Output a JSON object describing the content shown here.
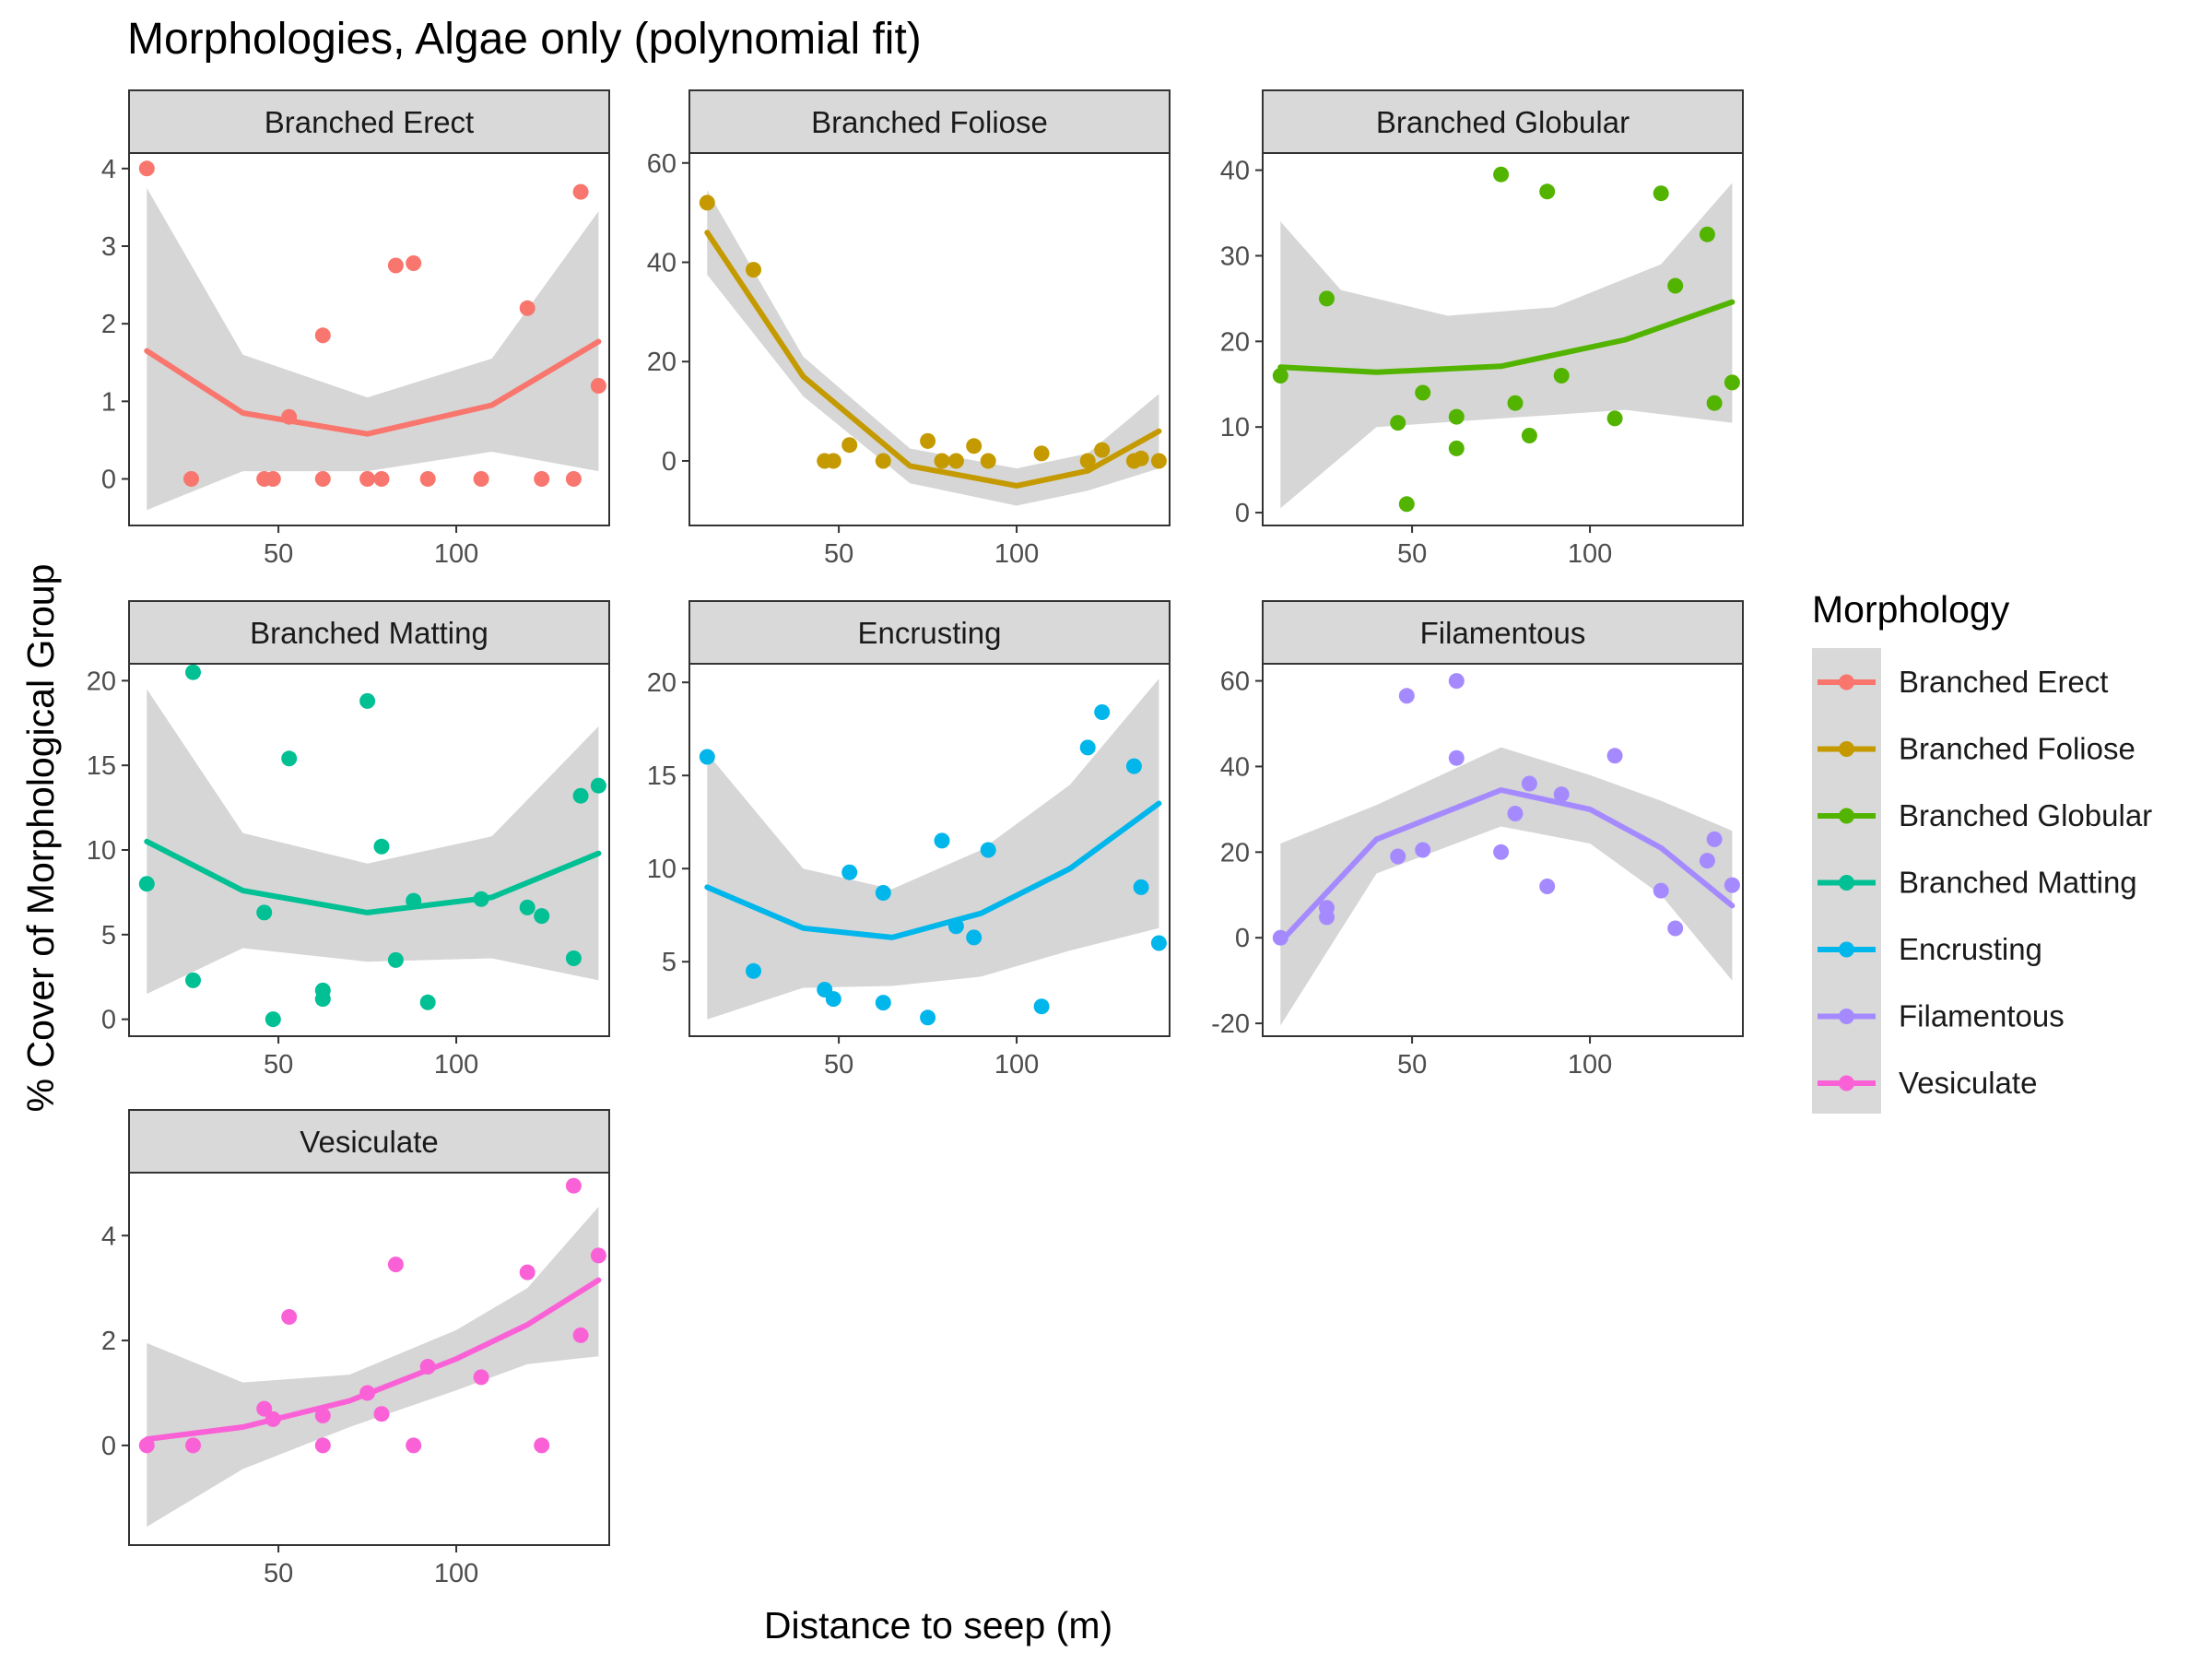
{
  "title": "Morphologies, Algae only (polynomial fit)",
  "xlabel": "Distance to seep (m)",
  "ylabel": "% Cover of Morphological Group",
  "legend": {
    "title": "Morphology",
    "position": "right"
  },
  "chart_data": {
    "type": "scatter",
    "facet_layout": "3 columns, 3 rows",
    "fit": "polynomial (degree 2) with confidence band",
    "x_range": [
      8,
      143
    ],
    "x_ticks": [
      50,
      100
    ],
    "panels": [
      {
        "name": "Branched Erect",
        "color": "#F8766D",
        "ylim": [
          -0.6,
          4.2
        ],
        "y_ticks": [
          0,
          1,
          2,
          3,
          4
        ],
        "points": [
          [
            13,
            4.0
          ],
          [
            25.5,
            0
          ],
          [
            46,
            0
          ],
          [
            48.5,
            0
          ],
          [
            53,
            0.8
          ],
          [
            62.5,
            1.85
          ],
          [
            62.5,
            0
          ],
          [
            75,
            0
          ],
          [
            79,
            0
          ],
          [
            83,
            2.75
          ],
          [
            88,
            2.78
          ],
          [
            92,
            0
          ],
          [
            107,
            0
          ],
          [
            120,
            2.2
          ],
          [
            124,
            0
          ],
          [
            133,
            0
          ],
          [
            135,
            3.7
          ],
          [
            140,
            1.2
          ]
        ],
        "fit": [
          [
            13,
            1.65
          ],
          [
            40,
            0.85
          ],
          [
            75,
            0.58
          ],
          [
            110,
            0.95
          ],
          [
            140,
            1.77
          ]
        ],
        "band_upper": [
          [
            13,
            3.75
          ],
          [
            40,
            1.6
          ],
          [
            75,
            1.05
          ],
          [
            110,
            1.55
          ],
          [
            140,
            3.45
          ]
        ],
        "band_lower": [
          [
            13,
            -0.4
          ],
          [
            40,
            0.1
          ],
          [
            75,
            0.1
          ],
          [
            110,
            0.35
          ],
          [
            140,
            0.1
          ]
        ]
      },
      {
        "name": "Branched Foliose",
        "color": "#C49A00",
        "ylim": [
          -13,
          62
        ],
        "y_ticks": [
          0,
          20,
          40,
          60
        ],
        "points": [
          [
            13,
            52
          ],
          [
            26,
            38.5
          ],
          [
            46,
            0
          ],
          [
            48.5,
            0
          ],
          [
            53,
            3.2
          ],
          [
            62.5,
            0
          ],
          [
            75,
            4
          ],
          [
            79,
            0
          ],
          [
            83,
            0
          ],
          [
            88,
            3
          ],
          [
            92,
            0
          ],
          [
            107,
            1.5
          ],
          [
            120,
            0
          ],
          [
            124,
            2.2
          ],
          [
            133,
            0
          ],
          [
            135,
            0.5
          ],
          [
            140,
            0
          ]
        ],
        "fit": [
          [
            13,
            46
          ],
          [
            40,
            17
          ],
          [
            70,
            -1
          ],
          [
            100,
            -5
          ],
          [
            120,
            -2
          ],
          [
            140,
            6
          ]
        ],
        "band_upper": [
          [
            13,
            54.5
          ],
          [
            40,
            21
          ],
          [
            70,
            2.5
          ],
          [
            100,
            -1.5
          ],
          [
            120,
            1.5
          ],
          [
            140,
            13.5
          ]
        ],
        "band_lower": [
          [
            13,
            37.5
          ],
          [
            40,
            13
          ],
          [
            70,
            -4.5
          ],
          [
            100,
            -9
          ],
          [
            120,
            -6
          ],
          [
            140,
            -1.5
          ]
        ]
      },
      {
        "name": "Branched Globular",
        "color": "#53B400",
        "ylim": [
          -1.5,
          42
        ],
        "y_ticks": [
          0,
          10,
          20,
          30,
          40
        ],
        "points": [
          [
            13,
            16
          ],
          [
            26,
            25
          ],
          [
            46,
            10.5
          ],
          [
            48.5,
            1
          ],
          [
            53,
            14
          ],
          [
            62.5,
            11.2
          ],
          [
            62.5,
            7.5
          ],
          [
            75,
            39.5
          ],
          [
            79,
            12.8
          ],
          [
            83,
            9
          ],
          [
            88,
            37.5
          ],
          [
            92,
            16
          ],
          [
            107,
            11
          ],
          [
            120,
            37.3
          ],
          [
            124,
            26.5
          ],
          [
            133,
            32.5
          ],
          [
            135,
            12.8
          ],
          [
            140,
            15.2
          ]
        ],
        "fit": [
          [
            13,
            17
          ],
          [
            40,
            16.4
          ],
          [
            75,
            17.1
          ],
          [
            110,
            20.2
          ],
          [
            140,
            24.6
          ]
        ],
        "band_upper": [
          [
            13,
            34
          ],
          [
            30,
            26
          ],
          [
            60,
            23
          ],
          [
            90,
            24
          ],
          [
            120,
            29
          ],
          [
            140,
            38.5
          ]
        ],
        "band_lower": [
          [
            13,
            0.5
          ],
          [
            40,
            10
          ],
          [
            75,
            11
          ],
          [
            110,
            12
          ],
          [
            140,
            10.5
          ]
        ]
      },
      {
        "name": "Branched Matting",
        "color": "#00C094",
        "ylim": [
          -1,
          21
        ],
        "y_ticks": [
          0,
          5,
          10,
          15,
          20
        ],
        "points": [
          [
            13,
            8
          ],
          [
            26,
            2.3
          ],
          [
            26,
            20.5
          ],
          [
            46,
            6.3
          ],
          [
            48.5,
            0
          ],
          [
            53,
            15.4
          ],
          [
            62.5,
            1.7
          ],
          [
            62.5,
            1.2
          ],
          [
            75,
            18.8
          ],
          [
            79,
            10.2
          ],
          [
            83,
            3.5
          ],
          [
            88,
            7
          ],
          [
            92,
            1
          ],
          [
            107,
            7.1
          ],
          [
            120,
            6.6
          ],
          [
            124,
            6.1
          ],
          [
            133,
            3.6
          ],
          [
            135,
            13.2
          ],
          [
            140,
            13.8
          ]
        ],
        "fit": [
          [
            13,
            10.5
          ],
          [
            40,
            7.6
          ],
          [
            75,
            6.3
          ],
          [
            110,
            7.2
          ],
          [
            140,
            9.8
          ]
        ],
        "band_upper": [
          [
            13,
            19.5
          ],
          [
            40,
            11
          ],
          [
            75,
            9.2
          ],
          [
            110,
            10.8
          ],
          [
            140,
            17.3
          ]
        ],
        "band_lower": [
          [
            13,
            1.5
          ],
          [
            40,
            4.2
          ],
          [
            75,
            3.4
          ],
          [
            110,
            3.6
          ],
          [
            140,
            2.3
          ]
        ]
      },
      {
        "name": "Encrusting",
        "color": "#00B6EB",
        "ylim": [
          1,
          21
        ],
        "y_ticks": [
          5,
          10,
          15,
          20
        ],
        "points": [
          [
            13,
            16
          ],
          [
            26,
            4.5
          ],
          [
            46,
            3.5
          ],
          [
            48.5,
            3
          ],
          [
            53,
            9.8
          ],
          [
            62.5,
            8.7
          ],
          [
            62.5,
            2.8
          ],
          [
            75,
            2
          ],
          [
            79,
            11.5
          ],
          [
            83,
            6.9
          ],
          [
            88,
            6.3
          ],
          [
            92,
            11
          ],
          [
            107,
            2.6
          ],
          [
            120,
            16.5
          ],
          [
            124,
            18.4
          ],
          [
            133,
            15.5
          ],
          [
            135,
            9
          ],
          [
            140,
            6
          ]
        ],
        "fit": [
          [
            13,
            9
          ],
          [
            40,
            6.8
          ],
          [
            65,
            6.3
          ],
          [
            90,
            7.6
          ],
          [
            115,
            10
          ],
          [
            140,
            13.5
          ]
        ],
        "band_upper": [
          [
            13,
            16.2
          ],
          [
            40,
            10
          ],
          [
            65,
            8.9
          ],
          [
            90,
            11
          ],
          [
            115,
            14.5
          ],
          [
            140,
            20.2
          ]
        ],
        "band_lower": [
          [
            13,
            1.9
          ],
          [
            40,
            3.6
          ],
          [
            65,
            3.7
          ],
          [
            90,
            4.2
          ],
          [
            115,
            5.6
          ],
          [
            140,
            6.8
          ]
        ]
      },
      {
        "name": "Filamentous",
        "color": "#A58AFF",
        "ylim": [
          -23,
          64
        ],
        "y_ticks": [
          -20,
          0,
          20,
          40,
          60
        ],
        "points": [
          [
            13,
            0
          ],
          [
            26,
            7
          ],
          [
            26,
            4.8
          ],
          [
            46,
            19
          ],
          [
            48.5,
            56.5
          ],
          [
            53,
            20.5
          ],
          [
            62.5,
            60
          ],
          [
            62.5,
            42
          ],
          [
            75,
            20
          ],
          [
            79,
            29
          ],
          [
            83,
            36
          ],
          [
            88,
            12
          ],
          [
            92,
            33.5
          ],
          [
            107,
            42.5
          ],
          [
            120,
            11
          ],
          [
            124,
            2.2
          ],
          [
            133,
            18
          ],
          [
            135,
            23
          ],
          [
            140,
            12.3
          ]
        ],
        "fit": [
          [
            13,
            -1
          ],
          [
            40,
            23
          ],
          [
            75,
            34.5
          ],
          [
            100,
            30
          ],
          [
            120,
            21
          ],
          [
            140,
            7.5
          ]
        ],
        "band_upper": [
          [
            13,
            22
          ],
          [
            40,
            31
          ],
          [
            75,
            44.5
          ],
          [
            100,
            38
          ],
          [
            120,
            32
          ],
          [
            140,
            25
          ]
        ],
        "band_lower": [
          [
            13,
            -20.5
          ],
          [
            40,
            15
          ],
          [
            75,
            26
          ],
          [
            100,
            22
          ],
          [
            120,
            10
          ],
          [
            140,
            -10
          ]
        ]
      },
      {
        "name": "Vesiculate",
        "color": "#FB61D7",
        "ylim": [
          -1.9,
          5.2
        ],
        "y_ticks": [
          0,
          2,
          4
        ],
        "points": [
          [
            13,
            0
          ],
          [
            26,
            0
          ],
          [
            46,
            0.7
          ],
          [
            48.5,
            0.5
          ],
          [
            53,
            2.45
          ],
          [
            62.5,
            0.57
          ],
          [
            62.5,
            0
          ],
          [
            75,
            1
          ],
          [
            79,
            0.6
          ],
          [
            83,
            3.45
          ],
          [
            88,
            0
          ],
          [
            92,
            1.5
          ],
          [
            107,
            1.3
          ],
          [
            120,
            3.3
          ],
          [
            124,
            0
          ],
          [
            133,
            4.95
          ],
          [
            135,
            2.1
          ],
          [
            140,
            3.62
          ]
        ],
        "fit": [
          [
            13,
            0.12
          ],
          [
            40,
            0.35
          ],
          [
            70,
            0.85
          ],
          [
            100,
            1.65
          ],
          [
            120,
            2.3
          ],
          [
            140,
            3.15
          ]
        ],
        "band_upper": [
          [
            13,
            1.95
          ],
          [
            40,
            1.2
          ],
          [
            70,
            1.35
          ],
          [
            100,
            2.2
          ],
          [
            120,
            3.0
          ],
          [
            140,
            4.55
          ]
        ],
        "band_lower": [
          [
            13,
            -1.55
          ],
          [
            40,
            -0.45
          ],
          [
            70,
            0.35
          ],
          [
            100,
            1.05
          ],
          [
            120,
            1.55
          ],
          [
            140,
            1.7
          ]
        ]
      }
    ]
  }
}
